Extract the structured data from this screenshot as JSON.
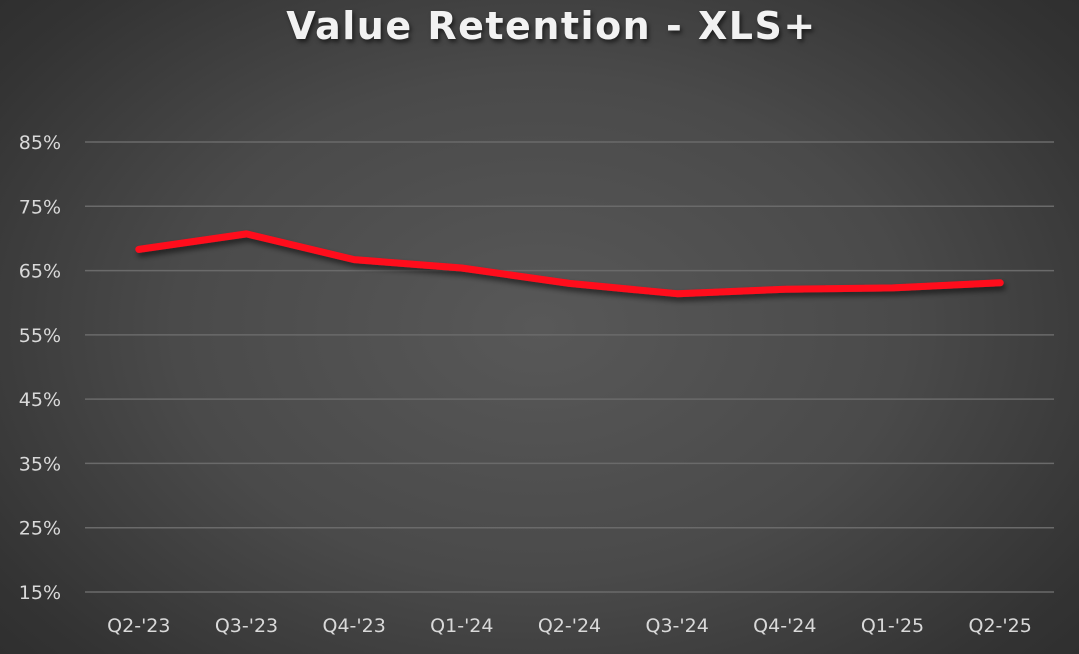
{
  "chart_data": {
    "type": "line",
    "title": "Value Retention - XLS+",
    "xlabel": "",
    "ylabel": "",
    "categories": [
      "Q2-'23",
      "Q3-'23",
      "Q4-'23",
      "Q1-'24",
      "Q2-'24",
      "Q3-'24",
      "Q4-'24",
      "Q1-'25",
      "Q2-'25"
    ],
    "series": [
      {
        "name": "XLS+",
        "color": "#ff0d1c",
        "values": [
          68.3,
          70.7,
          66.7,
          65.4,
          63.0,
          61.4,
          62.1,
          62.3,
          63.1
        ]
      }
    ],
    "ylim": [
      15,
      85
    ],
    "yticks": [
      85,
      75,
      65,
      55,
      45,
      35,
      25,
      15
    ],
    "ytick_labels": [
      "85%",
      "75%",
      "65%",
      "55%",
      "45%",
      "35%",
      "25%",
      "15%"
    ],
    "grid": true,
    "legend": "none"
  },
  "colors": {
    "line": "#ff0d1c",
    "gridline": "#6a6a6a",
    "text": "#d9d9d9",
    "title": "#f2f2f2"
  }
}
